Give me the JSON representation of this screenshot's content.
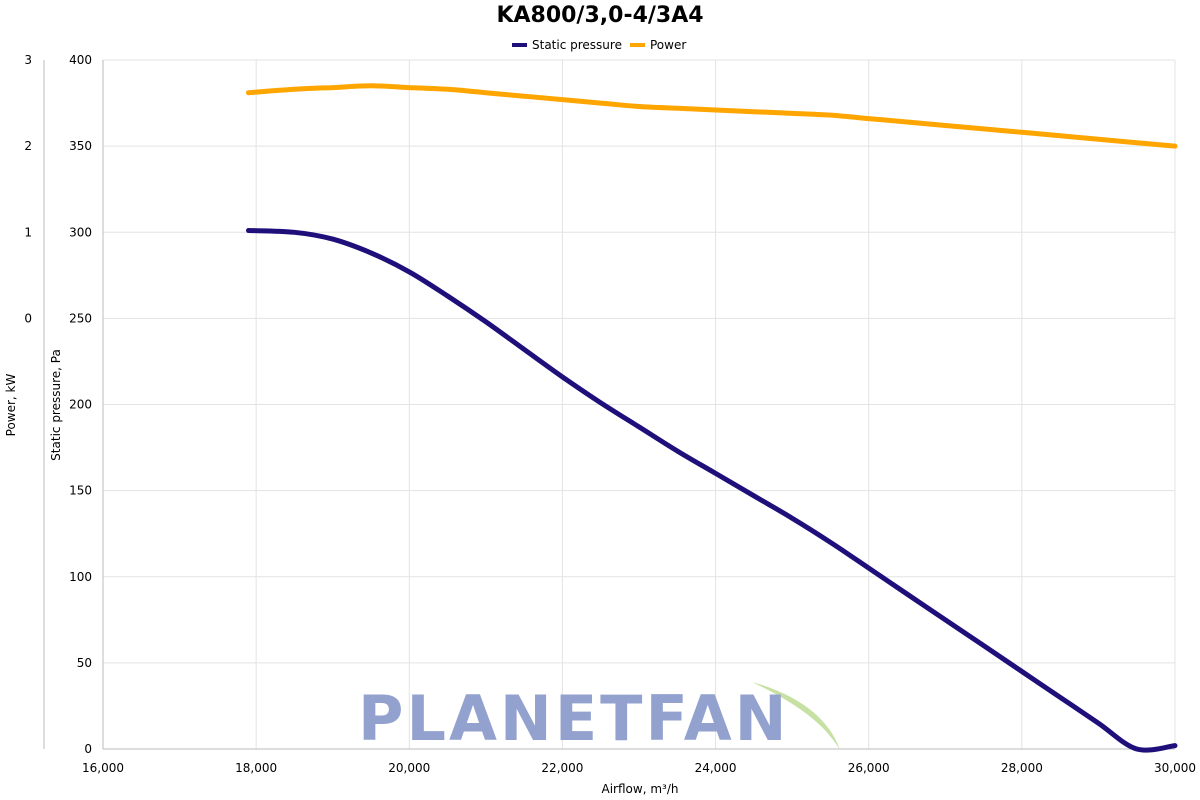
{
  "chart_data": {
    "type": "line",
    "title": "KA800/3,0-4/3A4",
    "xlabel": "Airflow, m³/h",
    "ylabel_left_outer": "Power, kW",
    "ylabel_left_inner": "Static pressure, Pa",
    "xlim": [
      16000,
      30000
    ],
    "xticks": [
      "16,000",
      "18,000",
      "20,000",
      "22,000",
      "24,000",
      "26,000",
      "28,000",
      "30,000"
    ],
    "xtick_values": [
      16000,
      18000,
      20000,
      22000,
      24000,
      26000,
      28000,
      30000
    ],
    "y_pressure_lim": [
      0,
      400
    ],
    "y_pressure_ticks": [
      "0",
      "50",
      "100",
      "150",
      "200",
      "250",
      "300",
      "350",
      "400"
    ],
    "y_power_ticks": [
      "0",
      "1",
      "2",
      "3"
    ],
    "y_power_tick_pressure_equiv": [
      250,
      300,
      350,
      400
    ],
    "legend_position": "top-center",
    "grid": true,
    "series": [
      {
        "name": "Static pressure",
        "axis": "pressure",
        "color": "#1e0f7a",
        "x": [
          17900,
          18500,
          19000,
          19500,
          20000,
          20500,
          21000,
          21500,
          22000,
          22500,
          23000,
          23500,
          24000,
          24500,
          25000,
          25500,
          26000,
          26500,
          27000,
          27500,
          28000,
          28500,
          29000,
          29500,
          30000
        ],
        "y": [
          301,
          300,
          296,
          288,
          277,
          263,
          248,
          232,
          216,
          201,
          187,
          173,
          160,
          147,
          134,
          120,
          105,
          90,
          75,
          60,
          45,
          30,
          15,
          0,
          2
        ]
      },
      {
        "name": "Power",
        "axis": "pressure_scale",
        "color": "#ffa500",
        "x": [
          17900,
          18500,
          19000,
          19500,
          20000,
          20500,
          21000,
          21500,
          22000,
          22500,
          23000,
          23500,
          24000,
          24500,
          25000,
          25500,
          26000,
          26500,
          27000,
          27500,
          28000,
          28500,
          29000,
          29500,
          30000
        ],
        "y": [
          381,
          383,
          384,
          385,
          384,
          383,
          381,
          379,
          377,
          375,
          373,
          372,
          371,
          370,
          369,
          368,
          366,
          364,
          362,
          360,
          358,
          356,
          354,
          352,
          350
        ]
      }
    ]
  },
  "watermark": {
    "text": "PLANETFAN",
    "text_color": "#8e9dcc",
    "leaf_color": "#c5e0a0"
  }
}
